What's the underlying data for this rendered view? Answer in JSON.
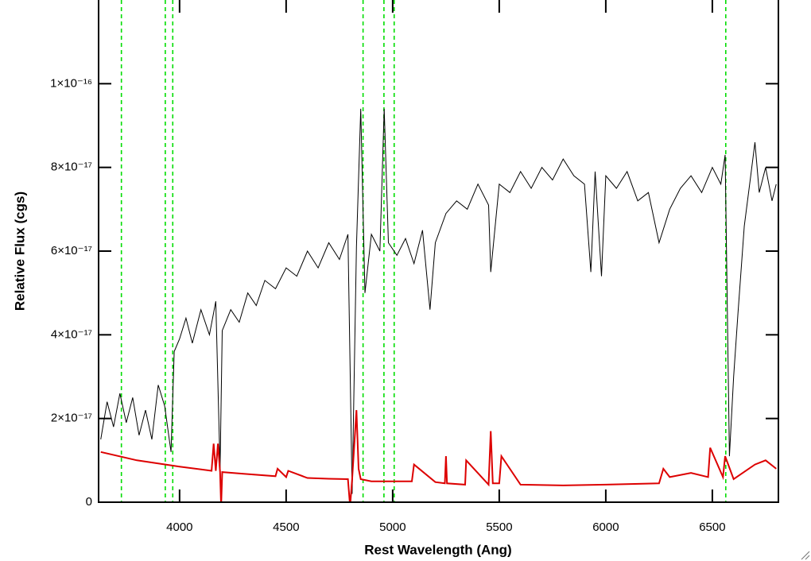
{
  "chart_data": {
    "type": "line",
    "x_label": "Rest Wavelength (Ang)",
    "y_label": "Relative Flux (cgs)",
    "xlim": [
      3620,
      6810
    ],
    "ylim": [
      0,
      1.2e-16
    ],
    "xticks": [
      4000,
      4500,
      5000,
      5500,
      6000,
      6500
    ],
    "yticks": [
      0,
      {
        "value": 2e-17,
        "label": "2×10⁻¹⁷"
      },
      {
        "value": 4e-17,
        "label": "4×10⁻¹⁷"
      },
      {
        "value": 6e-17,
        "label": "6×10⁻¹⁷"
      },
      {
        "value": 8e-17,
        "label": "8×10⁻¹⁷"
      },
      {
        "value": 1e-16,
        "label": "1×10⁻¹⁶"
      }
    ],
    "vlines": [
      3727,
      3933,
      3968,
      4861,
      4959,
      5007,
      6563
    ],
    "vline_color": "#00dd00",
    "series": [
      {
        "color": "#000000",
        "x": [
          3630,
          3660,
          3690,
          3720,
          3750,
          3780,
          3810,
          3840,
          3870,
          3900,
          3930,
          3960,
          3975,
          4000,
          4030,
          4060,
          4100,
          4140,
          4170,
          4190,
          4200,
          4240,
          4280,
          4320,
          4360,
          4400,
          4450,
          4500,
          4550,
          4600,
          4650,
          4700,
          4750,
          4790,
          4810,
          4830,
          4850,
          4870,
          4900,
          4940,
          4960,
          4980,
          5020,
          5060,
          5100,
          5140,
          5175,
          5200,
          5250,
          5300,
          5350,
          5400,
          5450,
          5460,
          5500,
          5550,
          5600,
          5650,
          5700,
          5750,
          5800,
          5850,
          5900,
          5930,
          5950,
          5980,
          6000,
          6050,
          6100,
          6150,
          6200,
          6250,
          6300,
          6350,
          6400,
          6450,
          6500,
          6540,
          6560,
          6580,
          6600,
          6620,
          6650,
          6680,
          6700,
          6720,
          6750,
          6780,
          6800
        ],
        "values": [
          1.5e-17,
          2.4e-17,
          1.8e-17,
          2.6e-17,
          1.9e-17,
          2.5e-17,
          1.6e-17,
          2.2e-17,
          1.5e-17,
          2.8e-17,
          2.3e-17,
          1.2e-17,
          3.6e-17,
          3.9e-17,
          4.4e-17,
          3.8e-17,
          4.6e-17,
          4e-17,
          4.8e-17,
          8e-18,
          4.1e-17,
          4.6e-17,
          4.3e-17,
          5e-17,
          4.7e-17,
          5.3e-17,
          5.1e-17,
          5.6e-17,
          5.4e-17,
          6e-17,
          5.6e-17,
          6.2e-17,
          5.8e-17,
          6.4e-17,
          2e-18,
          6.1e-17,
          9.4e-17,
          5e-17,
          6.4e-17,
          6e-17,
          9.4e-17,
          6.2e-17,
          5.9e-17,
          6.3e-17,
          5.7e-17,
          6.5e-17,
          4.6e-17,
          6.2e-17,
          6.9e-17,
          7.2e-17,
          7e-17,
          7.6e-17,
          7.1e-17,
          5.5e-17,
          7.6e-17,
          7.4e-17,
          7.9e-17,
          7.5e-17,
          8e-17,
          7.7e-17,
          8.2e-17,
          7.8e-17,
          7.6e-17,
          5.5e-17,
          7.9e-17,
          5.4e-17,
          7.8e-17,
          7.5e-17,
          7.9e-17,
          7.2e-17,
          7.4e-17,
          6.2e-17,
          7e-17,
          7.5e-17,
          7.8e-17,
          7.4e-17,
          8e-17,
          7.6e-17,
          8.3e-17,
          1.1e-17,
          3e-17,
          4.5e-17,
          6.6e-17,
          7.8e-17,
          8.6e-17,
          7.4e-17,
          8e-17,
          7.2e-17,
          7.6e-17
        ]
      },
      {
        "color": "#dd0000",
        "x": [
          3630,
          3800,
          4000,
          4150,
          4160,
          4170,
          4180,
          4190,
          4195,
          4200,
          4300,
          4450,
          4460,
          4500,
          4510,
          4600,
          4700,
          4790,
          4800,
          4810,
          4830,
          4840,
          4850,
          4900,
          5000,
          5090,
          5100,
          5200,
          5245,
          5250,
          5255,
          5340,
          5345,
          5450,
          5460,
          5470,
          5500,
          5510,
          5600,
          5800,
          6000,
          6250,
          6270,
          6300,
          6400,
          6480,
          6490,
          6550,
          6560,
          6600,
          6700,
          6750,
          6800
        ],
        "values": [
          1.2e-17,
          1e-17,
          8.5e-18,
          7.5e-18,
          1.4e-17,
          7.5e-18,
          1.4e-17,
          7.2e-18,
          -1e-18,
          7.2e-18,
          6.8e-18,
          6.2e-18,
          8e-18,
          6e-18,
          7.5e-18,
          5.8e-18,
          5.6e-18,
          5.5e-18,
          -1e-18,
          5.5e-18,
          2.2e-17,
          8e-18,
          5.5e-18,
          5e-18,
          5e-18,
          5e-18,
          9e-18,
          4.8e-18,
          4.5e-18,
          1.1e-17,
          4.5e-18,
          4.2e-18,
          1e-17,
          4.2e-18,
          1.7e-17,
          4.5e-18,
          4.5e-18,
          1.1e-17,
          4.2e-18,
          4e-18,
          4.2e-18,
          4.5e-18,
          8e-18,
          6e-18,
          7e-18,
          6e-18,
          1.3e-17,
          6e-18,
          1.1e-17,
          5.5e-18,
          9e-18,
          1e-17,
          8e-18
        ]
      }
    ]
  }
}
